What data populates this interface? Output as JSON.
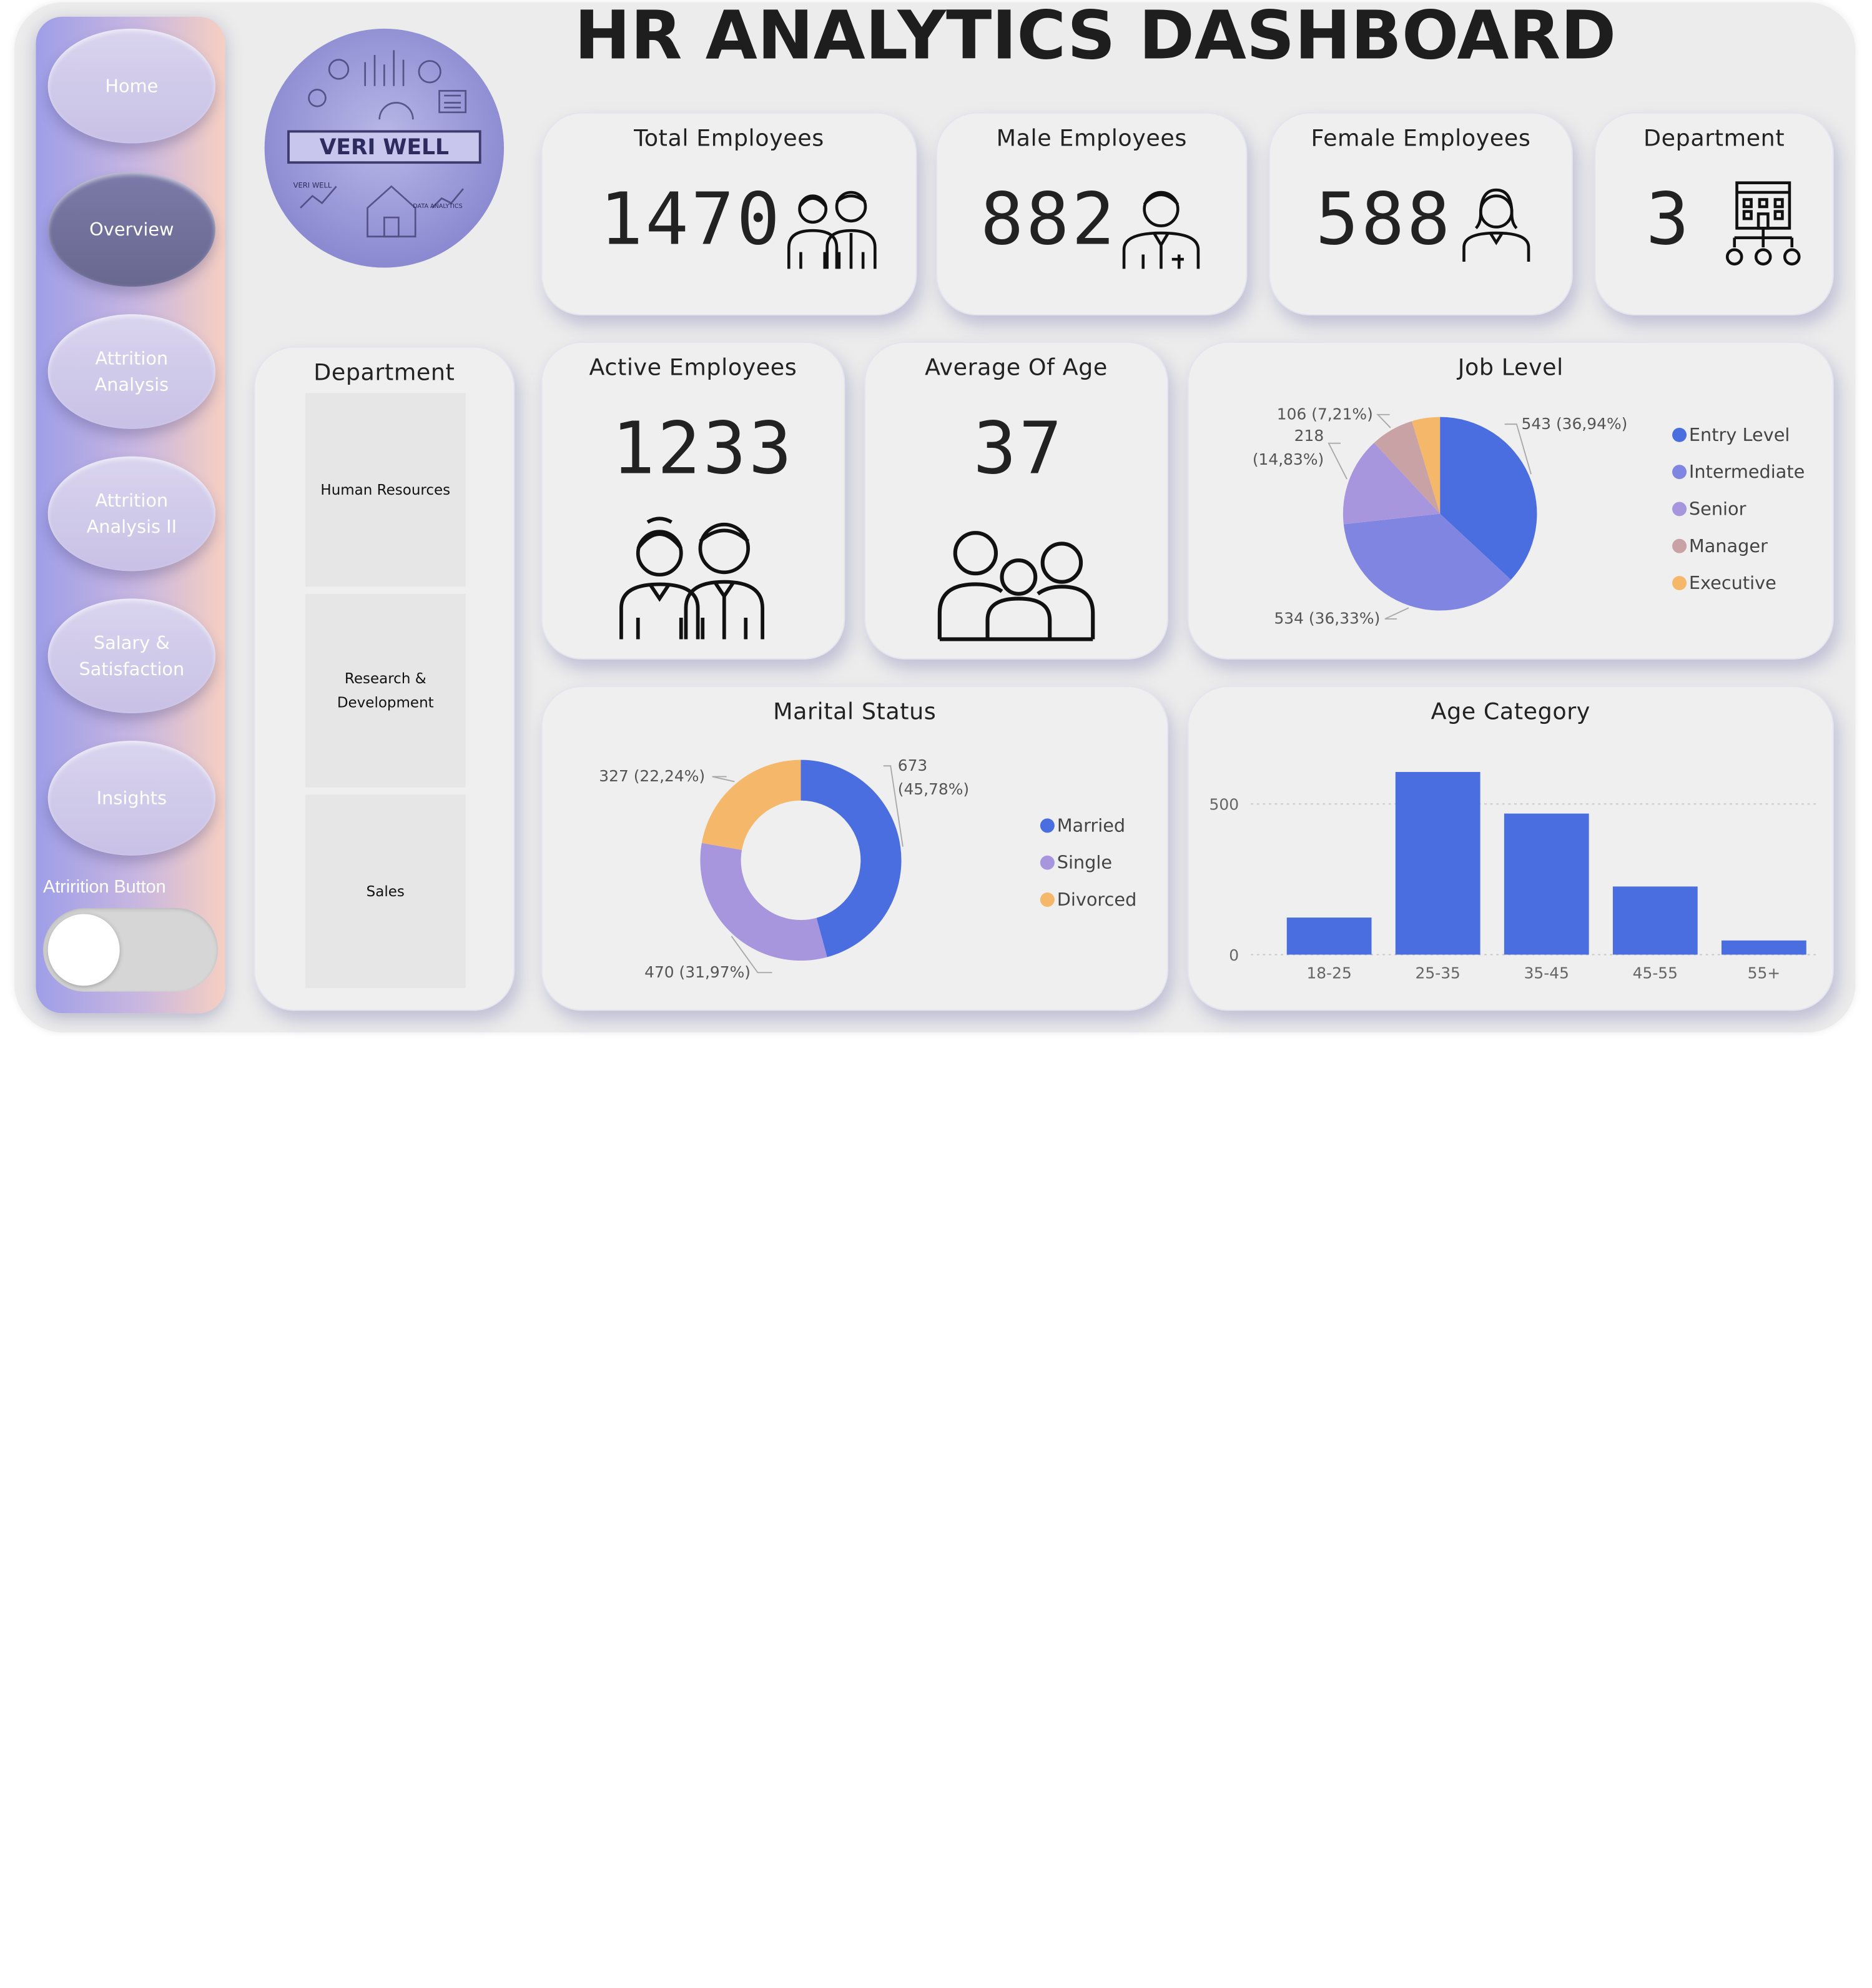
{
  "title": "HR ANALYTICS DASHBOARD",
  "logo": {
    "text": "VERI WELL",
    "small_left": "VERI WELL",
    "small_right": "DATA ANALYTICS"
  },
  "sidebar": {
    "items": [
      {
        "label": "Home"
      },
      {
        "label": "Overview"
      },
      {
        "label": "Attrition Analysis"
      },
      {
        "label": "Attrition Analysis II"
      },
      {
        "label": "Salary & Satisfaction"
      },
      {
        "label": "Insights"
      }
    ],
    "active_index": 1,
    "toggle_label": "Atrirition Button"
  },
  "kpis": {
    "total": {
      "title": "Total Employees",
      "value": "1470"
    },
    "male": {
      "title": "Male Employees",
      "value": "882"
    },
    "female": {
      "title": "Female Employees",
      "value": "588"
    },
    "department": {
      "title": "Department",
      "value": "3"
    },
    "active": {
      "title": "Active Employees",
      "value": "1233"
    },
    "age": {
      "title": "Average Of Age",
      "value": "37"
    }
  },
  "department_slicer": {
    "title": "Department",
    "items": [
      "Human Resources",
      "Research & Development",
      "Sales"
    ]
  },
  "colors": {
    "blue": "#4a6ee0",
    "violet": "#7f85e0",
    "lavender": "#a796dd",
    "rose": "#c8a2a4",
    "orange": "#f5b86a"
  },
  "chart_data": [
    {
      "type": "pie",
      "title": "Job Level",
      "categories": [
        "Entry Level",
        "Intermediate",
        "Senior",
        "Manager",
        "Executive"
      ],
      "values": [
        543,
        534,
        218,
        106,
        69
      ],
      "data_labels": [
        "543 (36,94%)",
        "534 (36,33%)",
        "218 (14,83%)",
        "106 (7,21%)",
        ""
      ],
      "legend": "right"
    },
    {
      "type": "pie",
      "title": "Marital Status",
      "donut": true,
      "categories": [
        "Married",
        "Single",
        "Divorced"
      ],
      "values": [
        673,
        470,
        327
      ],
      "data_labels": [
        "673 (45,78%)",
        "470 (31,97%)",
        "327 (22,24%)"
      ],
      "legend": "right"
    },
    {
      "type": "bar",
      "title": "Age Category",
      "categories": [
        "18-25",
        "25-35",
        "35-45",
        "45-55",
        "55+"
      ],
      "values": [
        123,
        606,
        468,
        226,
        47
      ],
      "y_ticks": [
        "0",
        "500"
      ],
      "ylim": [
        0,
        650
      ],
      "grid": true
    }
  ]
}
